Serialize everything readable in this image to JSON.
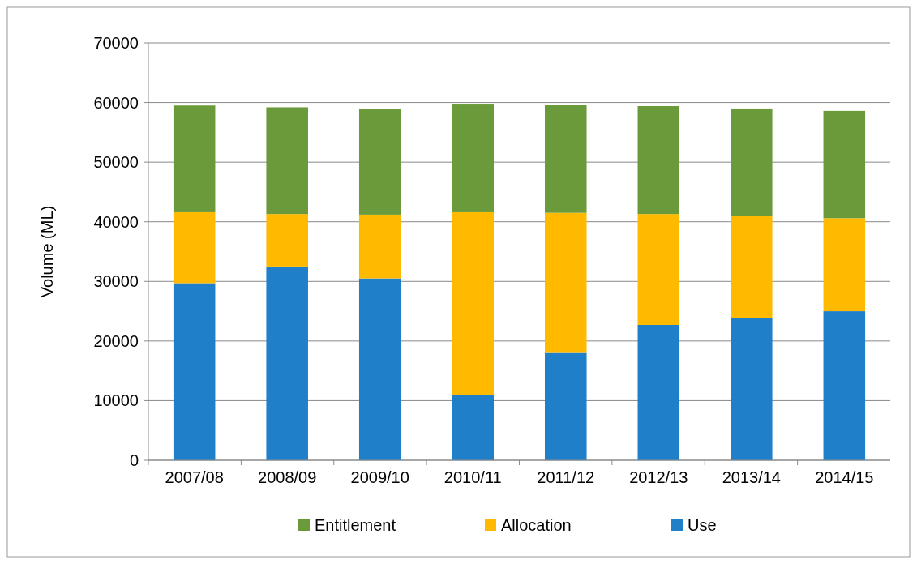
{
  "chart_data": {
    "type": "bar",
    "stacked": true,
    "ylabel": "Volume (ML)",
    "categories": [
      "2007/08",
      "2008/09",
      "2009/10",
      "2010/11",
      "2011/12",
      "2012/13",
      "2013/14",
      "2014/15"
    ],
    "series": [
      {
        "name": "Use",
        "color": "#1f7fc8",
        "values": [
          29700,
          32500,
          30500,
          11000,
          18000,
          22700,
          23800,
          25000
        ]
      },
      {
        "name": "Allocation",
        "color": "#ffba00",
        "values": [
          11900,
          8800,
          10700,
          30600,
          23500,
          18600,
          17200,
          15600
        ]
      },
      {
        "name": "Entitlement",
        "color": "#6a9a3a",
        "values": [
          17900,
          17900,
          17700,
          18200,
          18100,
          18100,
          18000,
          18000
        ]
      }
    ],
    "ylim": [
      0,
      70000
    ],
    "yticks": [
      0,
      10000,
      20000,
      30000,
      40000,
      50000,
      60000,
      70000
    ],
    "grid": "y",
    "legend": "bottom"
  }
}
